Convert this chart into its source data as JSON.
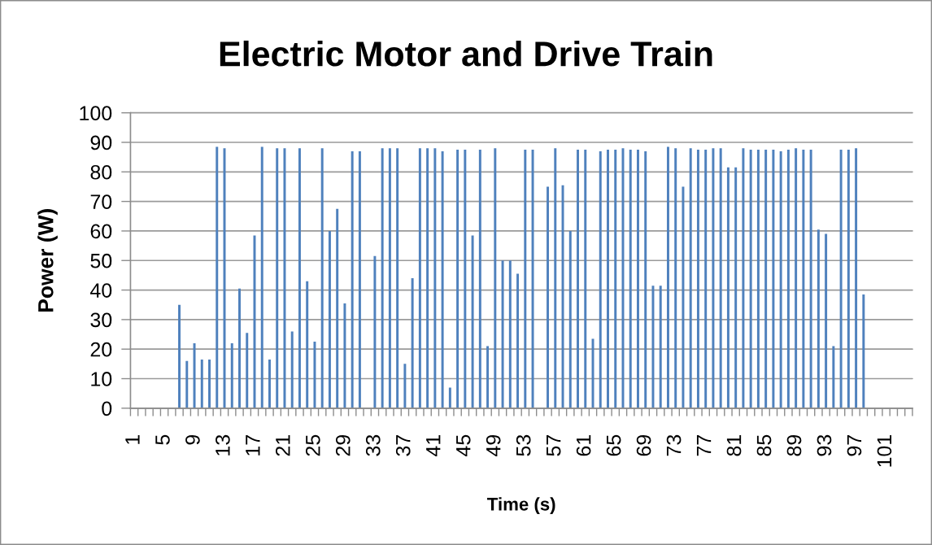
{
  "chart_data": {
    "type": "bar",
    "title": "Electric Motor and Drive Train",
    "xlabel": "Time (s)",
    "ylabel": "Power (W)",
    "categories": [
      "1",
      null,
      null,
      null,
      "5",
      null,
      null,
      null,
      "9",
      null,
      null,
      null,
      "13",
      null,
      null,
      null,
      "17",
      null,
      null,
      null,
      "21",
      null,
      null,
      null,
      "25",
      null,
      null,
      null,
      "29",
      null,
      null,
      null,
      "33",
      null,
      null,
      null,
      "37",
      null,
      null,
      null,
      "41",
      null,
      null,
      null,
      "45",
      null,
      null,
      null,
      "49",
      null,
      null,
      null,
      "53",
      null,
      null,
      null,
      "57",
      null,
      null,
      null,
      "61",
      null,
      null,
      null,
      "65",
      null,
      null,
      null,
      "69",
      null,
      null,
      null,
      "73",
      null,
      null,
      null,
      "77",
      null,
      null,
      null,
      "81",
      null,
      null,
      null,
      "85",
      null,
      null,
      null,
      "89",
      null,
      null,
      null,
      "93",
      null,
      null,
      null,
      "97",
      null,
      null,
      null,
      "101",
      null,
      null,
      null
    ],
    "values": [
      0,
      0,
      0,
      0,
      0,
      0,
      35,
      16,
      22,
      16.5,
      16.5,
      88.5,
      88,
      22,
      40.5,
      25.5,
      58.5,
      88.5,
      16.5,
      88,
      88,
      26,
      88,
      43,
      22.5,
      88,
      60,
      67.5,
      35.5,
      87,
      87,
      0,
      51.5,
      88,
      88,
      88,
      15,
      44,
      88,
      88,
      88,
      87,
      7,
      87.5,
      87.5,
      58.5,
      87.5,
      21,
      88,
      50,
      50,
      45.5,
      87.5,
      87.5,
      0,
      75,
      88,
      75.5,
      60,
      87.5,
      87.5,
      23.5,
      87,
      87.5,
      87.5,
      88,
      87.5,
      87.5,
      87,
      41.5,
      41.5,
      88.5,
      88,
      75,
      88,
      87.5,
      87.5,
      88,
      88,
      81.5,
      81.5,
      88,
      87.5,
      87.5,
      87.5,
      87.5,
      87,
      87.5,
      88,
      87.5,
      87.5,
      60.5,
      59,
      21,
      87.5,
      87.5,
      88,
      38.5,
      0,
      0,
      0,
      0,
      0,
      0
    ],
    "color": "#4f81bd",
    "ylim": [
      0,
      100
    ],
    "yticks": [
      0,
      10,
      20,
      30,
      40,
      50,
      60,
      70,
      80,
      90,
      100
    ],
    "grid": "y"
  }
}
